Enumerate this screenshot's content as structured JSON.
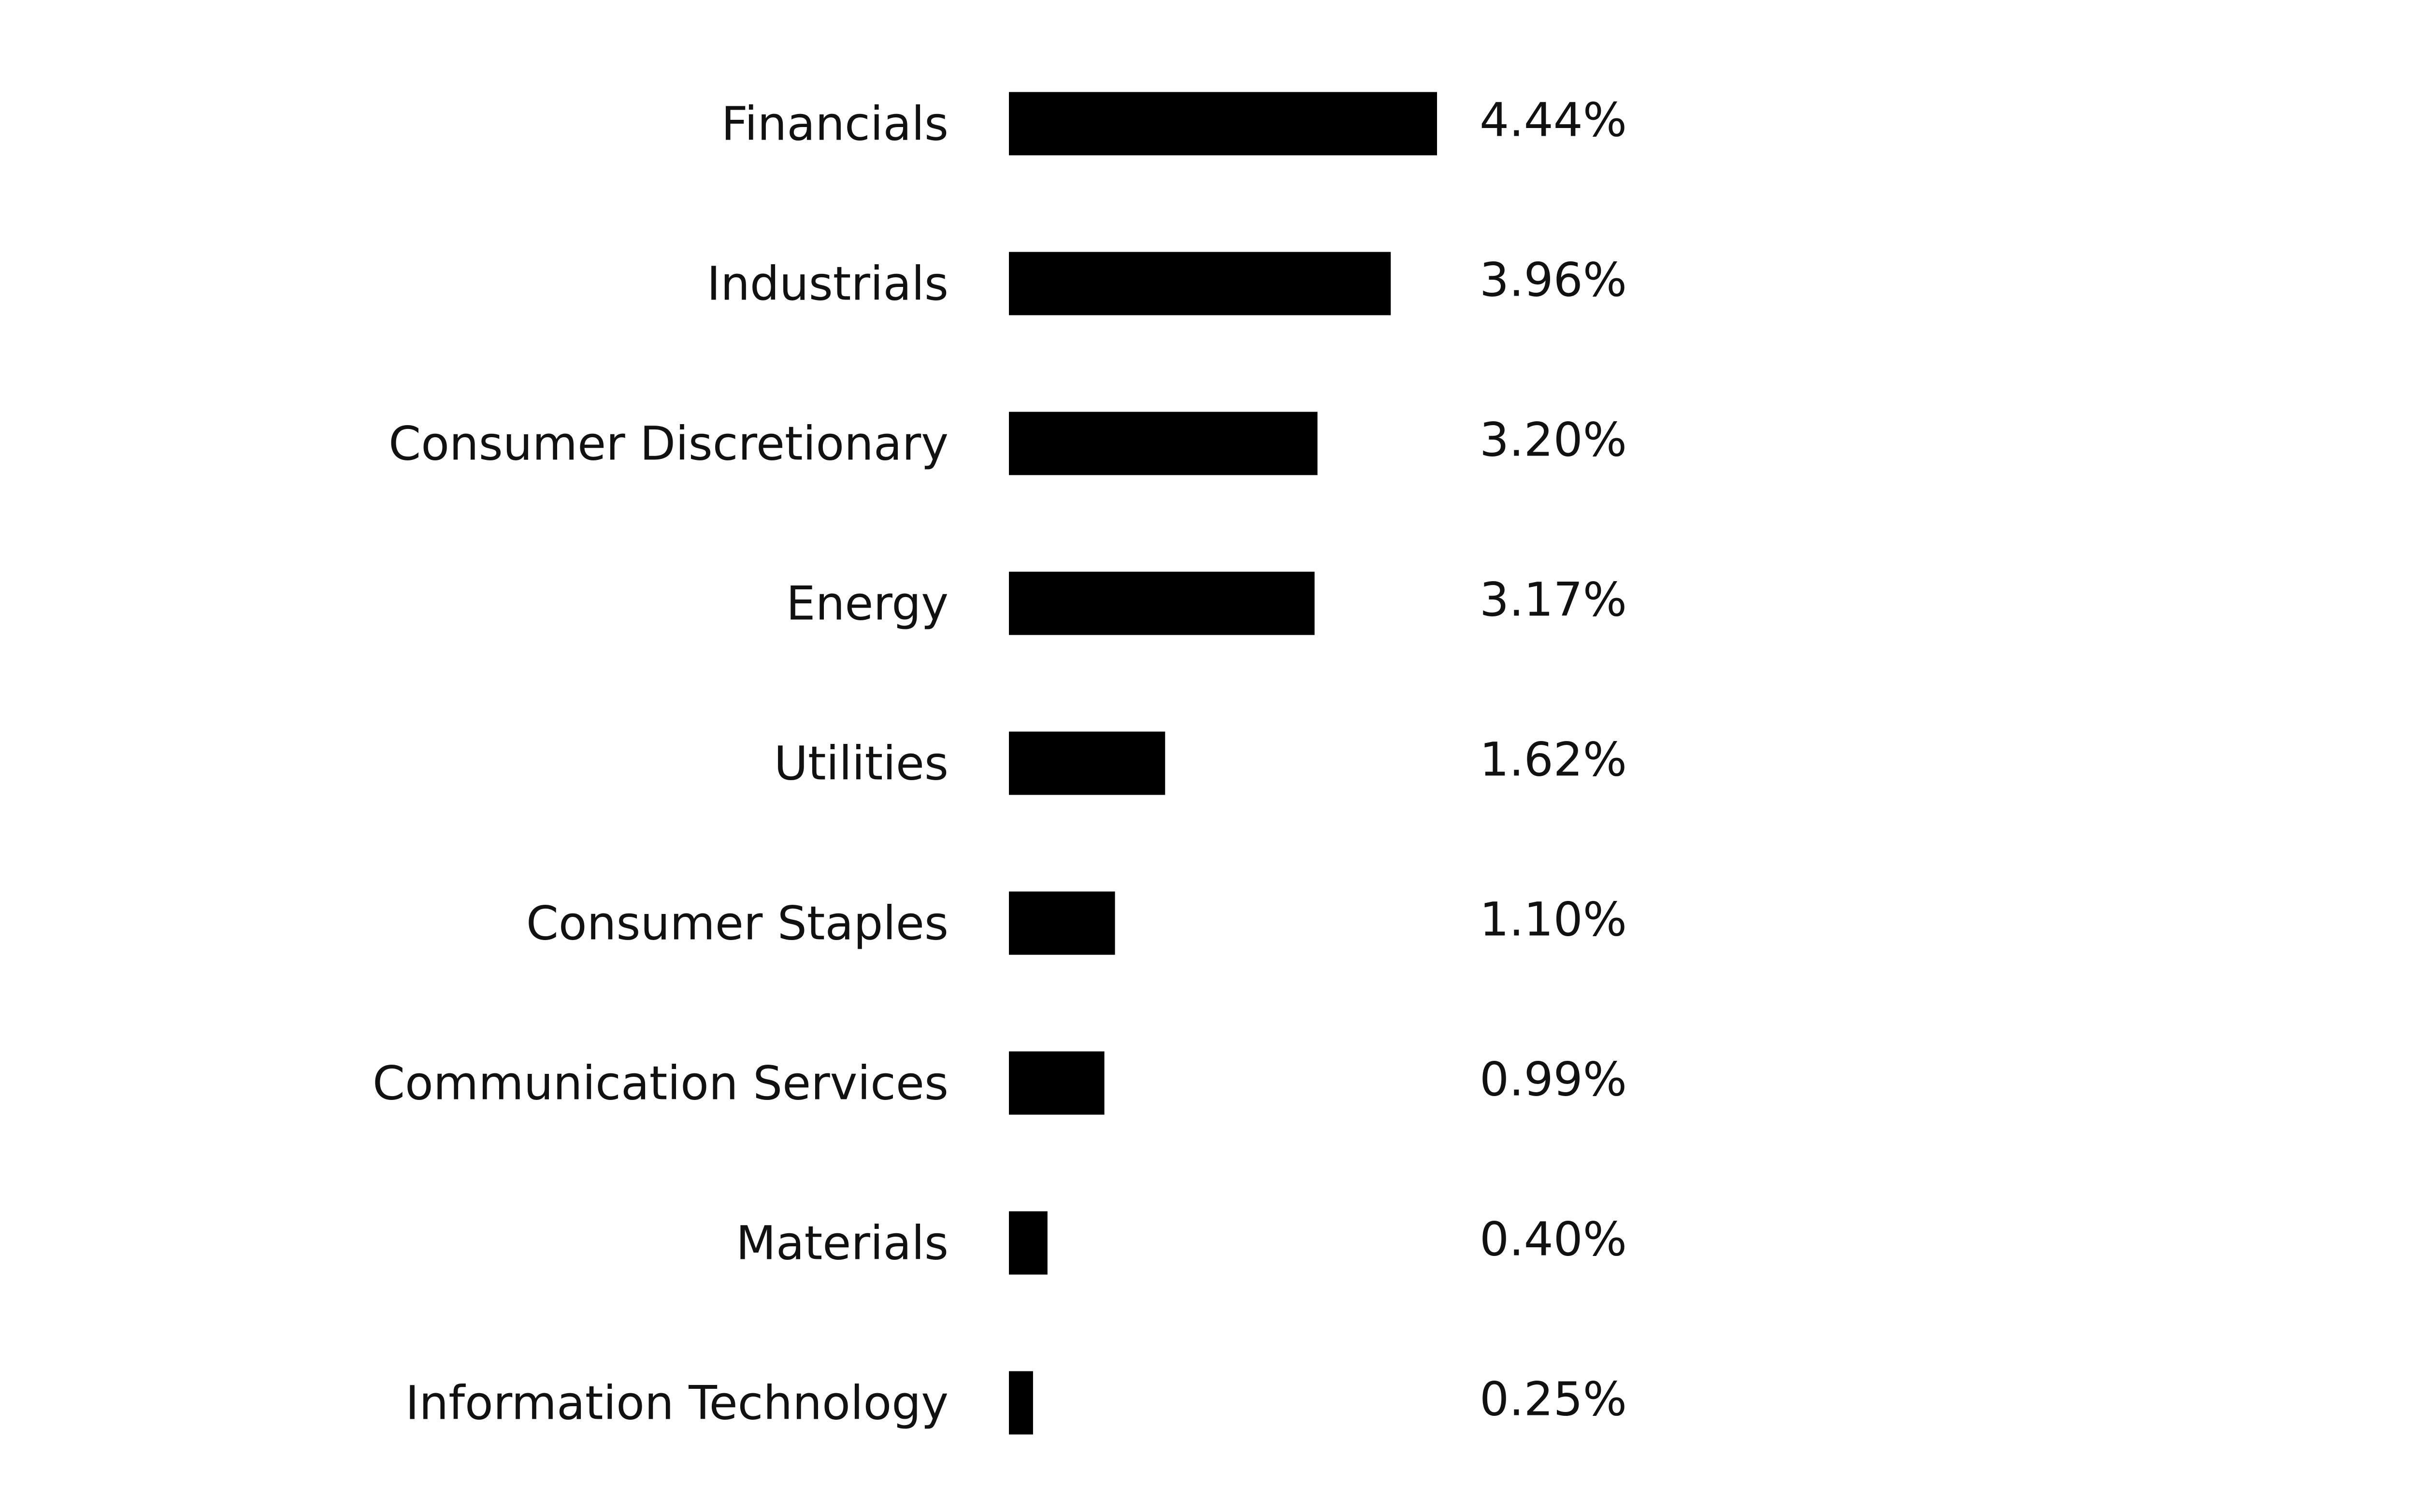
{
  "chart_data": {
    "type": "bar",
    "orientation": "horizontal",
    "title": "",
    "xlabel": "",
    "ylabel": "",
    "categories": [
      "Financials",
      "Industrials",
      "Consumer Discretionary",
      "Energy",
      "Utilities",
      "Consumer Staples",
      "Communication Services",
      "Materials",
      "Information Technology"
    ],
    "values": [
      4.44,
      3.96,
      3.2,
      3.17,
      1.62,
      1.1,
      0.99,
      0.4,
      0.25
    ],
    "value_labels": [
      "4.44%",
      "3.96%",
      "3.20%",
      "3.17%",
      "1.62%",
      "1.10%",
      "0.99%",
      "0.40%",
      "0.25%"
    ],
    "xlim": [
      0,
      4.44
    ],
    "grid": false,
    "legend": "none",
    "bar_color": "#000000",
    "text_color": "#111111"
  }
}
